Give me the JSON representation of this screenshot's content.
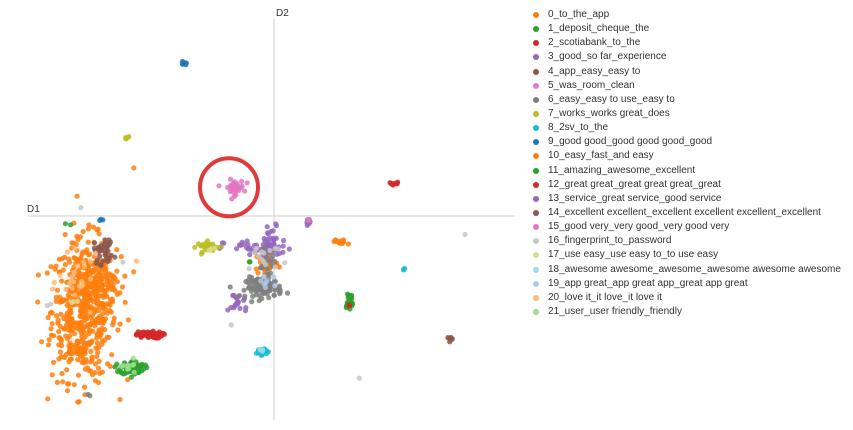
{
  "chart_data": {
    "type": "scatter",
    "title": "",
    "xlabel": "D1",
    "ylabel": "D2",
    "xlim": [
      -4.9,
      4.9
    ],
    "ylim": [
      -4.9,
      4.9
    ],
    "grid": false,
    "legend_position": "right",
    "highlight": {
      "shape": "circle",
      "color": "#e03a3a",
      "cx": -0.9,
      "cy": 0.7,
      "r": 0.58
    },
    "series": [
      {
        "name": "0_to_the_app",
        "color": "#ff7f0e",
        "clusters": [
          {
            "cx": -3.8,
            "cy": -2.3,
            "sx": 0.32,
            "sy": 0.85,
            "n": 520
          },
          {
            "cx": -3.5,
            "cy": -1.6,
            "sx": 0.22,
            "sy": 0.3,
            "n": 90
          },
          {
            "cx": -0.15,
            "cy": -1.15,
            "sx": 0.12,
            "sy": 0.15,
            "n": 40
          },
          {
            "cx": -2.8,
            "cy": 1.2,
            "sx": 0.02,
            "sy": 0.02,
            "n": 1
          },
          {
            "cx": 1.3,
            "cy": -0.6,
            "sx": 0.08,
            "sy": 0.02,
            "n": 8
          }
        ]
      },
      {
        "name": "1_deposit_cheque_the",
        "color": "#2ca02c",
        "clusters": [
          {
            "cx": -2.83,
            "cy": -3.7,
            "sx": 0.12,
            "sy": 0.08,
            "n": 70
          },
          {
            "cx": 1.5,
            "cy": -2.1,
            "sx": 0.05,
            "sy": 0.15,
            "n": 22
          },
          {
            "cx": -0.5,
            "cy": -1.1,
            "sx": 0.02,
            "sy": 0.02,
            "n": 2
          }
        ]
      },
      {
        "name": "2_scotiabank_to_the",
        "color": "#d62728",
        "clusters": [
          {
            "cx": -2.5,
            "cy": -2.9,
            "sx": 0.13,
            "sy": 0.04,
            "n": 70
          },
          {
            "cx": 2.4,
            "cy": 0.8,
            "sx": 0.05,
            "sy": 0.02,
            "n": 8
          }
        ]
      },
      {
        "name": "3_good_so far_experience",
        "color": "#9467bd",
        "clusters": [
          {
            "cx": -0.3,
            "cy": -0.8,
            "sx": 0.35,
            "sy": 0.1,
            "n": 45
          },
          {
            "cx": -0.05,
            "cy": -0.65,
            "sx": 0.1,
            "sy": 0.25,
            "n": 25
          },
          {
            "cx": -0.7,
            "cy": -2.1,
            "sx": 0.1,
            "sy": 0.15,
            "n": 20
          },
          {
            "cx": 0.65,
            "cy": -0.15,
            "sx": 0.03,
            "sy": 0.03,
            "n": 4
          }
        ]
      },
      {
        "name": "4_app_easy_easy to",
        "color": "#8c564b",
        "clusters": [
          {
            "cx": -3.4,
            "cy": -0.85,
            "sx": 0.1,
            "sy": 0.16,
            "n": 35
          },
          {
            "cx": 3.5,
            "cy": -3.0,
            "sx": 0.04,
            "sy": 0.04,
            "n": 4
          }
        ]
      },
      {
        "name": "5_was_room_clean",
        "color": "#e377c2",
        "clusters": [
          {
            "cx": -0.8,
            "cy": 0.7,
            "sx": 0.1,
            "sy": 0.09,
            "n": 40
          }
        ]
      },
      {
        "name": "6_easy_easy to use_easy to",
        "color": "#7f7f7f",
        "clusters": [
          {
            "cx": -0.2,
            "cy": -1.75,
            "sx": 0.18,
            "sy": 0.12,
            "n": 95
          },
          {
            "cx": -0.15,
            "cy": -1.2,
            "sx": 0.1,
            "sy": 0.2,
            "n": 25
          },
          {
            "cx": -3.7,
            "cy": -4.35,
            "sx": 0.02,
            "sy": 0.02,
            "n": 2
          }
        ]
      },
      {
        "name": "7_works_works great_does",
        "color": "#bcbd22",
        "clusters": [
          {
            "cx": -1.3,
            "cy": -0.75,
            "sx": 0.12,
            "sy": 0.06,
            "n": 28
          },
          {
            "cx": -2.95,
            "cy": 1.9,
            "sx": 0.03,
            "sy": 0.03,
            "n": 5
          }
        ]
      },
      {
        "name": "8_2sv_to_the",
        "color": "#17becf",
        "clusters": [
          {
            "cx": -0.25,
            "cy": -3.3,
            "sx": 0.05,
            "sy": 0.04,
            "n": 28
          },
          {
            "cx": 2.6,
            "cy": -1.3,
            "sx": 0.02,
            "sy": 0.02,
            "n": 3
          }
        ]
      },
      {
        "name": "9_good good_good good good_good",
        "color": "#1f77b4",
        "clusters": [
          {
            "cx": -1.8,
            "cy": 3.7,
            "sx": 0.03,
            "sy": 0.03,
            "n": 7
          },
          {
            "cx": -3.45,
            "cy": -0.1,
            "sx": 0.02,
            "sy": 0.02,
            "n": 3
          }
        ]
      },
      {
        "name": "10_easy_fast_and easy",
        "color": "#ff7f0e",
        "clusters": [
          {
            "cx": 1.4,
            "cy": -0.65,
            "sx": 0.06,
            "sy": 0.02,
            "n": 6
          }
        ]
      },
      {
        "name": "11_amazing_awesome_excellent",
        "color": "#2ca02c",
        "clusters": [
          {
            "cx": -4.15,
            "cy": -0.2,
            "sx": 0.03,
            "sy": 0.02,
            "n": 2
          }
        ]
      },
      {
        "name": "12_great great_great great great_great",
        "color": "#d62728",
        "clusters": [
          {
            "cx": 1.5,
            "cy": -2.2,
            "sx": 0.02,
            "sy": 0.02,
            "n": 2
          }
        ]
      },
      {
        "name": "13_service_great service_good service",
        "color": "#9467bd",
        "clusters": [
          {
            "cx": 0.7,
            "cy": -0.12,
            "sx": 0.03,
            "sy": 0.03,
            "n": 3
          }
        ]
      },
      {
        "name": "14_excellent excellent_excellent excellent excellent_excellent",
        "color": "#8c564b",
        "clusters": [
          {
            "cx": 3.55,
            "cy": -3.0,
            "sx": 0.02,
            "sy": 0.02,
            "n": 3
          }
        ]
      },
      {
        "name": "15_good very_very good_very good very",
        "color": "#e377c2",
        "clusters": [
          {
            "cx": 0.7,
            "cy": -0.1,
            "sx": 0.02,
            "sy": 0.02,
            "n": 2
          }
        ]
      },
      {
        "name": "16_fingerprint_to_password",
        "color": "#c7c7c7",
        "clusters": [
          {
            "cx": -3.9,
            "cy": 0.2,
            "sx": 0.02,
            "sy": 0.02,
            "n": 1
          },
          {
            "cx": 3.8,
            "cy": -0.45,
            "sx": 0.02,
            "sy": 0.02,
            "n": 1
          },
          {
            "cx": 1.7,
            "cy": -3.95,
            "sx": 0.02,
            "sy": 0.02,
            "n": 1
          },
          {
            "cx": -3.0,
            "cy": -1.15,
            "sx": 0.02,
            "sy": 0.02,
            "n": 1
          },
          {
            "cx": -0.9,
            "cy": -2.65,
            "sx": 0.02,
            "sy": 0.02,
            "n": 1
          },
          {
            "cx": -4.5,
            "cy": -2.2,
            "sx": 0.03,
            "sy": 0.02,
            "n": 2
          },
          {
            "cx": -0.2,
            "cy": -1.0,
            "sx": 0.25,
            "sy": 0.2,
            "n": 15
          }
        ]
      },
      {
        "name": "17_use easy_use easy to_to use easy",
        "color": "#dbdb8d",
        "clusters": [
          {
            "cx": -1.25,
            "cy": -0.8,
            "sx": 0.05,
            "sy": 0.04,
            "n": 4
          },
          {
            "cx": -4.0,
            "cy": -2.1,
            "sx": 0.05,
            "sy": 0.05,
            "n": 3
          }
        ]
      },
      {
        "name": "18_awesome awesome_awesome_awesome awesome awesome",
        "color": "#9edae5",
        "clusters": [
          {
            "cx": -0.25,
            "cy": -3.25,
            "sx": 0.03,
            "sy": 0.02,
            "n": 3
          }
        ]
      },
      {
        "name": "19_app great_app great app_great app great",
        "color": "#aec7e8",
        "clusters": [
          {
            "cx": -0.15,
            "cy": -1.6,
            "sx": 0.1,
            "sy": 0.1,
            "n": 8
          }
        ]
      },
      {
        "name": "20_love it_it love_it love it",
        "color": "#ffbb78",
        "clusters": [
          {
            "cx": -3.9,
            "cy": -1.6,
            "sx": 0.2,
            "sy": 0.3,
            "n": 25
          },
          {
            "cx": -2.7,
            "cy": -1.1,
            "sx": 0.02,
            "sy": 0.02,
            "n": 1
          }
        ]
      },
      {
        "name": "21_user_user friendly_friendly",
        "color": "#98df8a",
        "clusters": [
          {
            "cx": -2.9,
            "cy": -3.7,
            "sx": 0.1,
            "sy": 0.08,
            "n": 10
          }
        ]
      }
    ]
  }
}
